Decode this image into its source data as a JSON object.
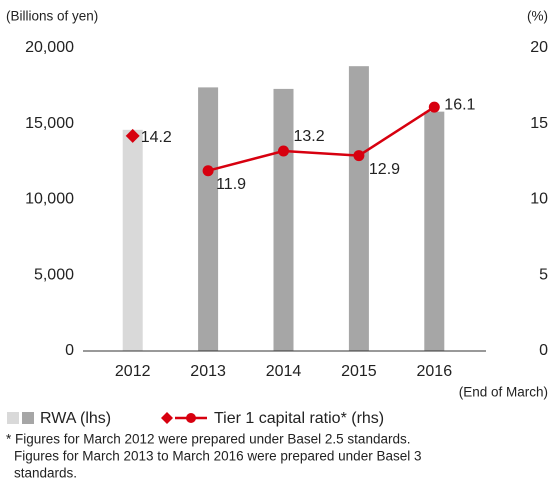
{
  "chart_data": {
    "type": "bar_line",
    "y_axis_label": "(Billions of yen)",
    "y2_axis_label": "(%)",
    "x_axis_label": "(End of March)",
    "categories": [
      "2012",
      "2013",
      "2014",
      "2015",
      "2016"
    ],
    "ylim": [
      0,
      20000
    ],
    "yticks": [
      0,
      {
        "value": 5000,
        "label": "5,000"
      },
      {
        "value": 10000,
        "label": "10,000"
      },
      {
        "value": 15000,
        "label": "15,000"
      },
      {
        "value": 20000,
        "label": "20,000"
      }
    ],
    "y2lim": [
      0,
      20
    ],
    "y2ticks": [
      0,
      5,
      10,
      15,
      20
    ],
    "series": [
      {
        "name": "RWA (lhs)",
        "type": "bar",
        "colors": [
          "#d9d9d9",
          "#a6a6a6",
          "#a6a6a6",
          "#a6a6a6",
          "#a6a6a6"
        ],
        "values": [
          14600,
          17400,
          17300,
          18800,
          15800
        ]
      },
      {
        "name": "Tier 1 capital ratio* (rhs)",
        "type": "line",
        "axis": "y2",
        "color": "#d7000f",
        "markers": [
          "diamond",
          "circle",
          "circle",
          "circle",
          "circle"
        ],
        "values": [
          14.2,
          11.9,
          13.2,
          12.9,
          16.1
        ]
      }
    ],
    "footnote": [
      "* Figures for March 2012 were prepared under Basel 2.5 standards.",
      "Figures for March 2013 to March 2016 were prepared under Basel 3",
      "standards."
    ]
  }
}
